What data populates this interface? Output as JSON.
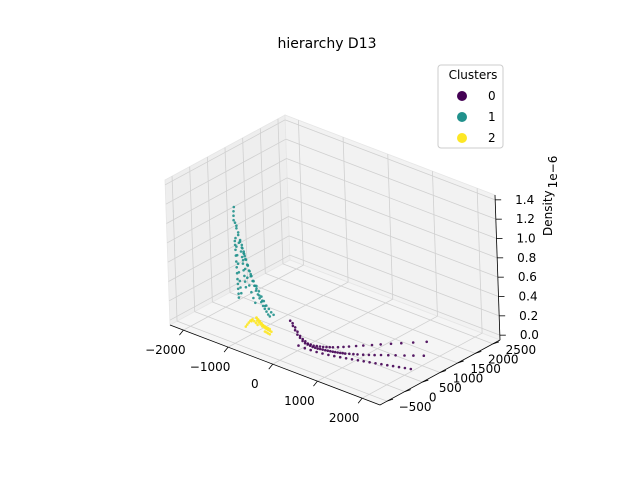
{
  "chart_data": {
    "type": "scatter",
    "projection": "3d",
    "title": "hierarchy D13",
    "xlabel": "",
    "ylabel": "",
    "zlabel": "Density",
    "z_offset_label": "1e−6",
    "xlim": [
      -2300,
      2400
    ],
    "ylim": [
      -700,
      2700
    ],
    "zlim": [
      -0.05,
      1.45
    ],
    "x_ticks": [
      -2000,
      -1000,
      0,
      1000,
      2000
    ],
    "x_tick_labels": [
      "−2000",
      "−1000",
      "0",
      "1000",
      "2000"
    ],
    "y_ticks": [
      -500,
      0,
      500,
      1000,
      1500,
      2000,
      2500
    ],
    "y_tick_labels": [
      "−500",
      "0",
      "500",
      "1000",
      "1500",
      "2000",
      "2500"
    ],
    "z_ticks": [
      0.0,
      0.2,
      0.4,
      0.6,
      0.8,
      1.0,
      1.2,
      1.4
    ],
    "z_tick_labels": [
      "0.0",
      "0.2",
      "0.4",
      "0.6",
      "0.8",
      "1.0",
      "1.2",
      "1.4"
    ],
    "grid": true,
    "legend": {
      "title": "Clusters",
      "placement": "top-right",
      "entries": [
        {
          "label": "0",
          "color": "#440154"
        },
        {
          "label": "1",
          "color": "#21918c"
        },
        {
          "label": "2",
          "color": "#fde725"
        }
      ]
    },
    "series": [
      {
        "name": "0",
        "color": "#440154",
        "points": [
          [
            -60,
            -100,
            0.27
          ],
          [
            -20,
            -80,
            0.22
          ],
          [
            20,
            -70,
            0.18
          ],
          [
            60,
            -60,
            0.14
          ],
          [
            100,
            -40,
            0.11
          ],
          [
            140,
            -20,
            0.08
          ],
          [
            180,
            0,
            0.06
          ],
          [
            220,
            20,
            0.05
          ],
          [
            260,
            40,
            0.04
          ],
          [
            300,
            60,
            0.03
          ],
          [
            340,
            80,
            0.025
          ],
          [
            380,
            100,
            0.02
          ],
          [
            420,
            120,
            0.018
          ],
          [
            460,
            140,
            0.015
          ],
          [
            500,
            160,
            0.012
          ],
          [
            540,
            180,
            0.01
          ],
          [
            580,
            200,
            0.008
          ],
          [
            620,
            220,
            0.006
          ],
          [
            660,
            240,
            0.005
          ],
          [
            700,
            260,
            0.004
          ],
          [
            740,
            280,
            0.003
          ],
          [
            780,
            300,
            0.003
          ],
          [
            820,
            320,
            0.002
          ],
          [
            880,
            360,
            0.002
          ],
          [
            940,
            400,
            0.0015
          ],
          [
            1000,
            440,
            0.001
          ],
          [
            1080,
            500,
            0.001
          ],
          [
            1160,
            560,
            0.0008
          ],
          [
            1240,
            620,
            0.0005
          ],
          [
            1320,
            700,
            0.0004
          ],
          [
            1420,
            780,
            0.0003
          ],
          [
            1520,
            860,
            0.0002
          ],
          [
            1640,
            960,
            0.0001
          ],
          [
            1760,
            1060,
            0.0001
          ],
          [
            1900,
            1180,
            0.0
          ],
          [
            -40,
            -60,
            0.24
          ],
          [
            0,
            -40,
            0.2
          ],
          [
            40,
            -30,
            0.16
          ],
          [
            80,
            -10,
            0.12
          ],
          [
            120,
            10,
            0.09
          ],
          [
            160,
            30,
            0.07
          ],
          [
            200,
            50,
            0.05
          ],
          [
            240,
            80,
            0.04
          ],
          [
            280,
            110,
            0.03
          ],
          [
            320,
            150,
            0.025
          ],
          [
            360,
            190,
            0.02
          ],
          [
            400,
            230,
            0.015
          ],
          [
            440,
            270,
            0.012
          ],
          [
            480,
            310,
            0.01
          ],
          [
            520,
            350,
            0.008
          ],
          [
            580,
            420,
            0.006
          ],
          [
            640,
            500,
            0.004
          ],
          [
            700,
            580,
            0.003
          ],
          [
            780,
            680,
            0.002
          ],
          [
            860,
            780,
            0.0015
          ],
          [
            960,
            900,
            0.001
          ],
          [
            1060,
            1020,
            0.0008
          ],
          [
            1180,
            1160,
            0.0005
          ],
          [
            1300,
            1300,
            0.0003
          ],
          [
            1440,
            1460,
            0.0002
          ],
          [
            1600,
            1640,
            0.0001
          ],
          [
            150,
            -150,
            0.06
          ],
          [
            250,
            -100,
            0.04
          ],
          [
            350,
            -60,
            0.03
          ],
          [
            450,
            -20,
            0.02
          ],
          [
            550,
            20,
            0.015
          ],
          [
            650,
            60,
            0.01
          ],
          [
            750,
            100,
            0.007
          ],
          [
            850,
            140,
            0.005
          ],
          [
            950,
            180,
            0.004
          ],
          [
            1050,
            220,
            0.003
          ],
          [
            1150,
            260,
            0.002
          ],
          [
            1250,
            300,
            0.0015
          ],
          [
            1350,
            340,
            0.001
          ],
          [
            1450,
            380,
            0.0008
          ],
          [
            1550,
            420,
            0.0005
          ],
          [
            1650,
            460,
            0.0003
          ],
          [
            1750,
            500,
            0.0002
          ],
          [
            1850,
            540,
            0.0001
          ],
          [
            1950,
            580,
            0.0001
          ],
          [
            2050,
            620,
            0.0
          ]
        ]
      },
      {
        "name": "1",
        "color": "#21918c",
        "points": [
          [
            -980,
            -380,
            1.12
          ],
          [
            -960,
            -360,
            1.05
          ],
          [
            -940,
            -340,
            0.98
          ],
          [
            -920,
            -320,
            0.92
          ],
          [
            -900,
            -300,
            0.86
          ],
          [
            -880,
            -280,
            0.8
          ],
          [
            -860,
            -260,
            0.74
          ],
          [
            -840,
            -240,
            0.68
          ],
          [
            -820,
            -220,
            0.62
          ],
          [
            -800,
            -200,
            0.57
          ],
          [
            -780,
            -180,
            0.52
          ],
          [
            -760,
            -160,
            0.47
          ],
          [
            -740,
            -140,
            0.43
          ],
          [
            -720,
            -120,
            0.39
          ],
          [
            -700,
            -100,
            0.35
          ],
          [
            -680,
            -80,
            0.31
          ],
          [
            -660,
            -60,
            0.28
          ],
          [
            -640,
            -40,
            0.25
          ],
          [
            -620,
            -20,
            0.22
          ],
          [
            -600,
            0,
            0.2
          ],
          [
            -1000,
            -300,
            0.95
          ],
          [
            -1000,
            -250,
            0.85
          ],
          [
            -1000,
            -200,
            0.75
          ],
          [
            -1000,
            -150,
            0.65
          ],
          [
            -1000,
            -100,
            0.55
          ],
          [
            -1000,
            -50,
            0.46
          ],
          [
            -1000,
            0,
            0.38
          ],
          [
            -1000,
            50,
            0.31
          ],
          [
            -1000,
            100,
            0.25
          ],
          [
            -960,
            -200,
            0.8
          ],
          [
            -940,
            -150,
            0.7
          ],
          [
            -920,
            -100,
            0.6
          ],
          [
            -900,
            -50,
            0.52
          ],
          [
            -880,
            0,
            0.44
          ],
          [
            -860,
            50,
            0.36
          ],
          [
            -840,
            100,
            0.3
          ],
          [
            -820,
            150,
            0.24
          ],
          [
            -1040,
            -340,
            1.0
          ],
          [
            -1060,
            -300,
            0.9
          ],
          [
            -1080,
            -260,
            0.8
          ],
          [
            -1100,
            -220,
            0.7
          ],
          [
            -1120,
            -180,
            0.6
          ],
          [
            -1140,
            -140,
            0.5
          ],
          [
            -1160,
            -100,
            0.42
          ],
          [
            -1180,
            -60,
            0.35
          ],
          [
            -1020,
            -400,
            1.2
          ],
          [
            -1000,
            -420,
            1.3
          ],
          [
            -980,
            -430,
            1.35
          ],
          [
            -1010,
            -410,
            1.25
          ],
          [
            -990,
            -400,
            1.18
          ],
          [
            -970,
            -390,
            1.15
          ],
          [
            -950,
            -370,
            1.08
          ],
          [
            -930,
            -350,
            1.0
          ],
          [
            -910,
            -330,
            0.95
          ],
          [
            -890,
            -310,
            0.88
          ],
          [
            -1050,
            -350,
            0.97
          ],
          [
            -1070,
            -320,
            0.92
          ],
          [
            -1090,
            -290,
            0.86
          ],
          [
            -1110,
            -260,
            0.79
          ],
          [
            -1130,
            -230,
            0.72
          ],
          [
            -1150,
            -200,
            0.65
          ],
          [
            -1170,
            -170,
            0.58
          ],
          [
            -1190,
            -140,
            0.51
          ],
          [
            -1210,
            -110,
            0.45
          ],
          [
            -1230,
            -80,
            0.39
          ],
          [
            -1250,
            -50,
            0.33
          ],
          [
            -1270,
            -20,
            0.28
          ],
          [
            -800,
            -100,
            0.5
          ],
          [
            -780,
            -60,
            0.44
          ],
          [
            -760,
            -20,
            0.38
          ],
          [
            -740,
            20,
            0.33
          ],
          [
            -720,
            60,
            0.28
          ],
          [
            -700,
            100,
            0.24
          ],
          [
            -680,
            140,
            0.2
          ],
          [
            -660,
            180,
            0.17
          ],
          [
            -940,
            -280,
            0.9
          ],
          [
            -920,
            -260,
            0.84
          ],
          [
            -900,
            -240,
            0.78
          ],
          [
            -880,
            -220,
            0.72
          ],
          [
            -860,
            -200,
            0.66
          ],
          [
            -840,
            -180,
            0.61
          ],
          [
            -820,
            -160,
            0.56
          ],
          [
            -800,
            -140,
            0.51
          ],
          [
            -1020,
            -200,
            0.78
          ],
          [
            -1040,
            -160,
            0.7
          ],
          [
            -1060,
            -120,
            0.62
          ],
          [
            -1080,
            -80,
            0.55
          ],
          [
            -1100,
            -40,
            0.48
          ],
          [
            -1120,
            0,
            0.41
          ]
        ]
      },
      {
        "name": "2",
        "color": "#fde725",
        "points": [
          [
            -700,
            -250,
            0.22
          ],
          [
            -680,
            -230,
            0.2
          ],
          [
            -660,
            -210,
            0.18
          ],
          [
            -640,
            -190,
            0.16
          ],
          [
            -620,
            -170,
            0.14
          ],
          [
            -600,
            -150,
            0.12
          ],
          [
            -580,
            -130,
            0.1
          ],
          [
            -560,
            -110,
            0.09
          ],
          [
            -540,
            -90,
            0.08
          ],
          [
            -520,
            -70,
            0.07
          ],
          [
            -740,
            -200,
            0.2
          ],
          [
            -720,
            -180,
            0.18
          ],
          [
            -700,
            -160,
            0.16
          ],
          [
            -680,
            -140,
            0.14
          ],
          [
            -660,
            -120,
            0.12
          ],
          [
            -640,
            -100,
            0.11
          ],
          [
            -620,
            -80,
            0.1
          ],
          [
            -600,
            -60,
            0.09
          ],
          [
            -580,
            -40,
            0.08
          ],
          [
            -780,
            -260,
            0.19
          ],
          [
            -760,
            -240,
            0.17
          ],
          [
            -740,
            -220,
            0.15
          ],
          [
            -720,
            -200,
            0.13
          ],
          [
            -800,
            -300,
            0.18
          ],
          [
            -820,
            -320,
            0.16
          ],
          [
            -840,
            -340,
            0.14
          ],
          [
            -860,
            -360,
            0.12
          ],
          [
            -760,
            -160,
            0.16
          ],
          [
            -740,
            -140,
            0.14
          ],
          [
            -720,
            -120,
            0.12
          ],
          [
            -700,
            -100,
            0.1
          ],
          [
            -680,
            -80,
            0.09
          ],
          [
            -660,
            -60,
            0.08
          ],
          [
            -640,
            -40,
            0.07
          ],
          [
            -560,
            -200,
            0.09
          ],
          [
            -540,
            -180,
            0.08
          ],
          [
            -520,
            -160,
            0.07
          ],
          [
            -500,
            -140,
            0.06
          ],
          [
            -820,
            -240,
            0.17
          ],
          [
            -840,
            -220,
            0.15
          ]
        ]
      }
    ]
  }
}
